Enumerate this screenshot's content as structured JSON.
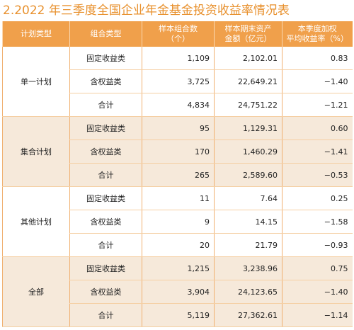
{
  "header": {
    "title": "2.2022 年三季度全国企业年金基金投资收益率情况表"
  },
  "table": {
    "columns": [
      [
        "计划类型"
      ],
      [
        "组合类型"
      ],
      [
        "样本组合数",
        "（个）"
      ],
      [
        "样本期末资产",
        "金额（亿元）"
      ],
      [
        "本季度加权",
        "平均收益率（%）"
      ]
    ],
    "groups": [
      {
        "name": "单一计划",
        "rows": [
          [
            "固定收益类",
            "1,109",
            "2,102.01",
            "0.83"
          ],
          [
            "含权益类",
            "3,725",
            "22,649.21",
            "−1.40"
          ],
          [
            "合计",
            "4,834",
            "24,751.22",
            "−1.21"
          ]
        ]
      },
      {
        "name": "集合计划",
        "rows": [
          [
            "固定收益类",
            "95",
            "1,129.31",
            "0.60"
          ],
          [
            "含权益类",
            "170",
            "1,460.29",
            "−1.41"
          ],
          [
            "合计",
            "265",
            "2,589.60",
            "−0.53"
          ]
        ]
      },
      {
        "name": "其他计划",
        "rows": [
          [
            "固定收益类",
            "11",
            "7.64",
            "0.25"
          ],
          [
            "含权益类",
            "9",
            "14.15",
            "−1.58"
          ],
          [
            "合计",
            "20",
            "21.79",
            "−0.93"
          ]
        ]
      },
      {
        "name": "全部",
        "rows": [
          [
            "固定收益类",
            "1,215",
            "3,238.96",
            "0.75"
          ],
          [
            "含权益类",
            "3,904",
            "24,123.65",
            "−1.40"
          ],
          [
            "合计",
            "5,119",
            "27,362.61",
            "−1.14"
          ]
        ]
      }
    ]
  }
}
